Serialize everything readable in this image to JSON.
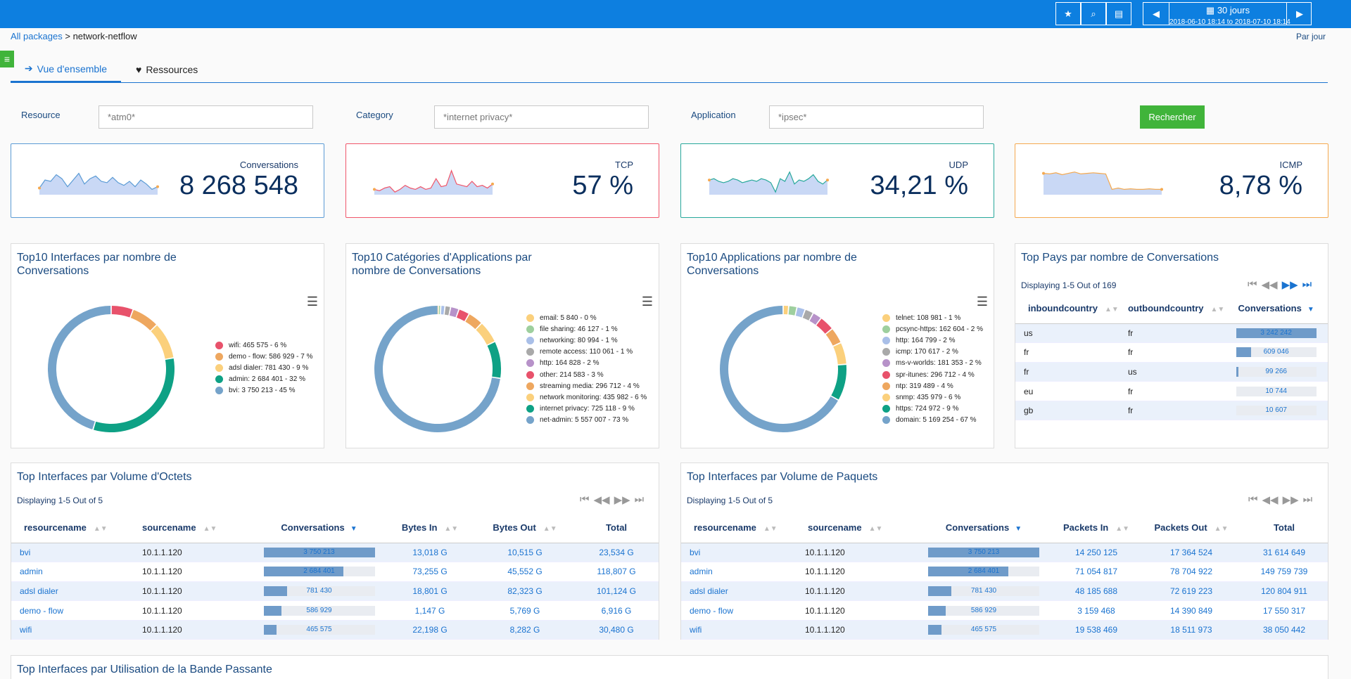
{
  "toolbar": {
    "star": "★",
    "search": "⌕",
    "pdf": "▤",
    "prev": "◀",
    "next": "▶",
    "period_label": "30 jours",
    "period_range": "2018-06-10 18:14 to 2018-07-10 18:14"
  },
  "breadcrumb": {
    "root": "All packages",
    "sep": ">",
    "current": "network-netflow"
  },
  "par_jour": "Par jour",
  "tabs": [
    {
      "label": "Vue d'ensemble",
      "icon": "➔"
    },
    {
      "label": "Ressources",
      "icon": "♥"
    }
  ],
  "filters": {
    "resource_label": "Resource",
    "resource_value": "*atm0*",
    "category_label": "Category",
    "category_value": "*internet privacy*",
    "application_label": "Application",
    "application_value": "*ipsec*",
    "search_button": "Rechercher"
  },
  "kpis": [
    {
      "label": "Conversations",
      "value": "8 268 548",
      "color": "#5b9bd5",
      "spark": [
        0.25,
        0.55,
        0.5,
        0.75,
        0.6,
        0.3,
        0.55,
        0.8,
        0.4,
        0.6,
        0.7,
        0.5,
        0.45,
        0.65,
        0.45,
        0.35,
        0.5,
        0.3,
        0.55,
        0.4,
        0.2,
        0.3
      ]
    },
    {
      "label": "TCP",
      "value": "57 %",
      "color": "#f0566a",
      "spark": [
        0.2,
        0.15,
        0.25,
        0.3,
        0.1,
        0.2,
        0.35,
        0.25,
        0.2,
        0.3,
        0.2,
        0.25,
        0.6,
        0.3,
        0.35,
        0.9,
        0.4,
        0.35,
        0.3,
        0.5,
        0.3,
        0.35,
        0.25,
        0.4
      ]
    },
    {
      "label": "UDP",
      "value": "34,21 %",
      "color": "#27a89b",
      "spark": [
        0.55,
        0.6,
        0.5,
        0.45,
        0.5,
        0.6,
        0.55,
        0.45,
        0.5,
        0.55,
        0.5,
        0.6,
        0.55,
        0.45,
        0.1,
        0.6,
        0.5,
        0.85,
        0.4,
        0.55,
        0.5,
        0.6,
        0.75,
        0.5,
        0.4,
        0.55
      ]
    },
    {
      "label": "ICMP",
      "value": "8,78 %",
      "color": "#f5a94f",
      "spark": [
        0.8,
        0.78,
        0.82,
        0.75,
        0.8,
        0.85,
        0.78,
        0.8,
        0.82,
        0.8,
        0.78,
        0.2,
        0.25,
        0.2,
        0.22,
        0.2,
        0.2,
        0.22,
        0.2,
        0.2
      ]
    }
  ],
  "donuts": [
    {
      "title": "Top10 Interfaces par nombre de Conversations",
      "menu": "☰",
      "items": [
        {
          "label": "wifi: 465 575 - 6 %",
          "value": 465575,
          "color": "#e8526b"
        },
        {
          "label": "demo - flow: 586 929 - 7 %",
          "value": 586929,
          "color": "#eea75f"
        },
        {
          "label": "adsl dialer: 781 430 - 9 %",
          "value": 781430,
          "color": "#fbd07c"
        },
        {
          "label": "admin: 2 684 401 - 32 %",
          "value": 2684401,
          "color": "#0ea185"
        },
        {
          "label": "bvi: 3 750 213 - 45 %",
          "value": 3750213,
          "color": "#75a3ca"
        }
      ]
    },
    {
      "title": "Top10 Catégories d'Applications par nombre de Conversations",
      "menu": "☰",
      "items": [
        {
          "label": "email: 5 840 - 0 %",
          "value": 5840,
          "color": "#fbd07c"
        },
        {
          "label": "file sharing: 46 127 - 1 %",
          "value": 46127,
          "color": "#9ecf9e"
        },
        {
          "label": "networking: 80 994 - 1 %",
          "value": 80994,
          "color": "#a9bfe8"
        },
        {
          "label": "remote access: 110 061 - 1 %",
          "value": 110061,
          "color": "#a9a9a9"
        },
        {
          "label": "http: 164 828 - 2 %",
          "value": 164828,
          "color": "#b792c9"
        },
        {
          "label": "other: 214 583 - 3 %",
          "value": 214583,
          "color": "#e8526b"
        },
        {
          "label": "streaming media: 296 712 - 4 %",
          "value": 296712,
          "color": "#eea75f"
        },
        {
          "label": "network monitoring: 435 982 - 6 %",
          "value": 435982,
          "color": "#fbd07c"
        },
        {
          "label": "internet privacy: 725 118 - 9 %",
          "value": 725118,
          "color": "#0ea185"
        },
        {
          "label": "net-admin: 5 557 007 - 73 %",
          "value": 5557007,
          "color": "#75a3ca"
        }
      ]
    },
    {
      "title": "Top10 Applications par nombre de Conversations",
      "menu": "☰",
      "items": [
        {
          "label": "telnet: 108 981 - 1 %",
          "value": 108981,
          "color": "#fbd07c"
        },
        {
          "label": "pcsync-https: 162 604 - 2 %",
          "value": 162604,
          "color": "#9ecf9e"
        },
        {
          "label": "http: 164 799 - 2 %",
          "value": 164799,
          "color": "#a9bfe8"
        },
        {
          "label": "icmp: 170 617 - 2 %",
          "value": 170617,
          "color": "#a9a9a9"
        },
        {
          "label": "ms-v-worlds: 181 353 - 2 %",
          "value": 181353,
          "color": "#b792c9"
        },
        {
          "label": "spr-itunes: 296 712 - 4 %",
          "value": 296712,
          "color": "#e8526b"
        },
        {
          "label": "ntp: 319 489 - 4 %",
          "value": 319489,
          "color": "#eea75f"
        },
        {
          "label": "snmp: 435 979 - 6 %",
          "value": 435979,
          "color": "#fbd07c"
        },
        {
          "label": "https: 724 972 - 9 %",
          "value": 724972,
          "color": "#0ea185"
        },
        {
          "label": "domain: 5 169 254 - 67 %",
          "value": 5169254,
          "color": "#75a3ca"
        }
      ]
    }
  ],
  "countries": {
    "title": "Top Pays par nombre de Conversations",
    "display": "Displaying 1-5 Out of 169",
    "pager": [
      "⏮",
      "◀◀",
      "▶▶",
      "⏭"
    ],
    "headers": [
      "inboundcountry",
      "outboundcountry",
      "Conversations"
    ],
    "rows": [
      {
        "in": "us",
        "out": "fr",
        "conv": "3 242 242",
        "frac": 1.0
      },
      {
        "in": "fr",
        "out": "fr",
        "conv": "609 046",
        "frac": 0.19
      },
      {
        "in": "fr",
        "out": "us",
        "conv": "99 266",
        "frac": 0.03
      },
      {
        "in": "eu",
        "out": "fr",
        "conv": "10 744",
        "frac": 0.0
      },
      {
        "in": "gb",
        "out": "fr",
        "conv": "10 607",
        "frac": 0.0
      }
    ]
  },
  "octets": {
    "title": "Top Interfaces par Volume d'Octets",
    "display": "Displaying 1-5 Out of 5",
    "pager": [
      "⏮",
      "◀◀",
      "▶▶",
      "⏭"
    ],
    "headers": [
      "resourcename",
      "sourcename",
      "Conversations",
      "Bytes In",
      "Bytes Out",
      "Total"
    ],
    "rows": [
      {
        "res": "bvi",
        "src": "10.1.1.120",
        "conv": "3 750 213",
        "frac": 1.0,
        "in": "13,018 G",
        "out": "10,515 G",
        "total": "23,534 G"
      },
      {
        "res": "admin",
        "src": "10.1.1.120",
        "conv": "2 684 401",
        "frac": 0.72,
        "in": "73,255 G",
        "out": "45,552 G",
        "total": "118,807 G"
      },
      {
        "res": "adsl dialer",
        "src": "10.1.1.120",
        "conv": "781 430",
        "frac": 0.21,
        "in": "18,801 G",
        "out": "82,323 G",
        "total": "101,124 G"
      },
      {
        "res": "demo - flow",
        "src": "10.1.1.120",
        "conv": "586 929",
        "frac": 0.16,
        "in": "1,147 G",
        "out": "5,769 G",
        "total": "6,916 G"
      },
      {
        "res": "wifi",
        "src": "10.1.1.120",
        "conv": "465 575",
        "frac": 0.12,
        "in": "22,198 G",
        "out": "8,282 G",
        "total": "30,480 G"
      }
    ]
  },
  "paquets": {
    "title": "Top Interfaces par Volume de Paquets",
    "display": "Displaying 1-5 Out of 5",
    "pager": [
      "⏮",
      "◀◀",
      "▶▶",
      "⏭"
    ],
    "headers": [
      "resourcename",
      "sourcename",
      "Conversations",
      "Packets In",
      "Packets Out",
      "Total"
    ],
    "rows": [
      {
        "res": "bvi",
        "src": "10.1.1.120",
        "conv": "3 750 213",
        "frac": 1.0,
        "in": "14 250 125",
        "out": "17 364 524",
        "total": "31 614 649"
      },
      {
        "res": "admin",
        "src": "10.1.1.120",
        "conv": "2 684 401",
        "frac": 0.72,
        "in": "71 054 817",
        "out": "78 704 922",
        "total": "149 759 739"
      },
      {
        "res": "adsl dialer",
        "src": "10.1.1.120",
        "conv": "781 430",
        "frac": 0.21,
        "in": "48 185 688",
        "out": "72 619 223",
        "total": "120 804 911"
      },
      {
        "res": "demo - flow",
        "src": "10.1.1.120",
        "conv": "586 929",
        "frac": 0.16,
        "in": "3 159 468",
        "out": "14 390 849",
        "total": "17 550 317"
      },
      {
        "res": "wifi",
        "src": "10.1.1.120",
        "conv": "465 575",
        "frac": 0.12,
        "in": "19 538 469",
        "out": "18 511 973",
        "total": "38 050 442"
      }
    ]
  },
  "bandwidth": {
    "title": "Top Interfaces par Utilisation de la Bande Passante"
  }
}
